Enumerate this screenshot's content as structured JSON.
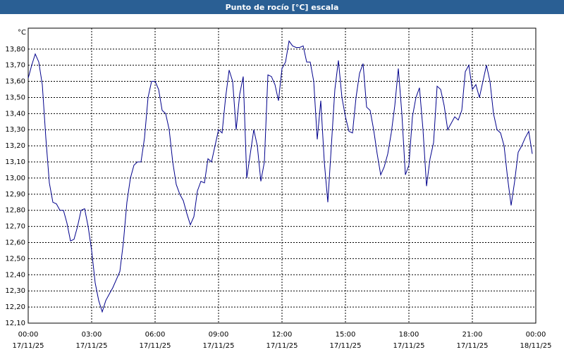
{
  "chart_data": {
    "type": "line",
    "title": "Punto de rocío [°C] escala",
    "unit": "°C",
    "x": [
      0,
      10,
      20,
      30,
      40,
      50,
      60,
      70,
      80,
      90,
      100,
      110,
      120,
      130,
      140,
      150,
      160,
      170,
      180,
      190,
      200,
      210,
      220,
      230,
      240,
      250,
      260,
      270,
      280,
      290,
      300,
      310,
      320,
      330,
      340,
      350,
      360,
      370,
      380,
      390,
      400,
      410,
      420,
      430,
      440,
      450,
      460,
      470,
      480,
      490,
      500,
      510,
      520,
      530,
      540,
      550,
      560,
      570,
      580,
      590,
      600,
      610,
      620,
      630,
      640,
      650,
      660,
      670,
      680,
      690,
      700,
      710,
      720,
      730,
      740,
      750,
      760,
      770,
      780,
      790,
      800,
      810,
      820,
      830,
      840,
      850,
      860,
      870,
      880,
      890,
      900,
      910,
      920,
      930,
      940,
      950,
      960,
      970,
      980,
      990,
      1000,
      1010,
      1020,
      1030,
      1040,
      1050,
      1060,
      1070,
      1080,
      1090,
      1100,
      1110,
      1120,
      1130,
      1140,
      1150,
      1160,
      1170,
      1180,
      1190,
      1200,
      1210,
      1220,
      1230,
      1240,
      1250,
      1260,
      1270,
      1280,
      1290,
      1300,
      1310,
      1320,
      1330,
      1340,
      1350,
      1360,
      1370,
      1380,
      1390,
      1400,
      1410,
      1420,
      1430
    ],
    "series": [
      {
        "color": "#00008b",
        "values": [
          13.62,
          13.7,
          13.77,
          13.72,
          13.58,
          13.25,
          12.97,
          12.85,
          12.84,
          12.8,
          12.8,
          12.72,
          12.61,
          12.62,
          12.7,
          12.8,
          12.81,
          12.7,
          12.55,
          12.35,
          12.24,
          12.17,
          12.24,
          12.28,
          12.32,
          12.37,
          12.42,
          12.6,
          12.85,
          13.0,
          13.08,
          13.1,
          13.1,
          13.25,
          13.5,
          13.6,
          13.6,
          13.55,
          13.42,
          13.4,
          13.3,
          13.1,
          12.96,
          12.9,
          12.86,
          12.78,
          12.71,
          12.76,
          12.92,
          12.98,
          12.97,
          13.12,
          13.1,
          13.2,
          13.3,
          13.28,
          13.5,
          13.67,
          13.6,
          13.3,
          13.52,
          13.63,
          13.0,
          13.15,
          13.3,
          13.2,
          12.98,
          13.1,
          13.64,
          13.63,
          13.58,
          13.48,
          13.68,
          13.72,
          13.85,
          13.82,
          13.81,
          13.81,
          13.82,
          13.72,
          13.72,
          13.6,
          13.24,
          13.48,
          13.1,
          12.85,
          13.2,
          13.55,
          13.73,
          13.5,
          13.38,
          13.29,
          13.28,
          13.5,
          13.65,
          13.71,
          13.44,
          13.42,
          13.3,
          13.15,
          13.02,
          13.07,
          13.15,
          13.28,
          13.45,
          13.68,
          13.4,
          13.02,
          13.08,
          13.38,
          13.5,
          13.56,
          13.3,
          12.95,
          13.12,
          13.22,
          13.57,
          13.55,
          13.45,
          13.3,
          13.34,
          13.38,
          13.36,
          13.42,
          13.66,
          13.7,
          13.55,
          13.58,
          13.5,
          13.6,
          13.7,
          13.6,
          13.4,
          13.3,
          13.28,
          13.2,
          13.0,
          12.83,
          12.98,
          13.16,
          13.2,
          13.25,
          13.29,
          13.15
        ]
      }
    ],
    "xlim": [
      0,
      1440
    ],
    "ylim": [
      12.1,
      13.93
    ],
    "xticks": [
      {
        "value": 0,
        "label": "00:00",
        "date": "17/11/25"
      },
      {
        "value": 180,
        "label": "03:00",
        "date": "17/11/25"
      },
      {
        "value": 360,
        "label": "06:00",
        "date": "17/11/25"
      },
      {
        "value": 540,
        "label": "09:00",
        "date": "17/11/25"
      },
      {
        "value": 720,
        "label": "12:00",
        "date": "17/11/25"
      },
      {
        "value": 900,
        "label": "15:00",
        "date": "17/11/25"
      },
      {
        "value": 1080,
        "label": "18:00",
        "date": "17/11/25"
      },
      {
        "value": 1260,
        "label": "21:00",
        "date": "17/11/25"
      },
      {
        "value": 1440,
        "label": "00:00",
        "date": "18/11/25"
      }
    ],
    "yticks": [
      {
        "value": 12.1,
        "label": "12,10"
      },
      {
        "value": 12.2,
        "label": "12,20"
      },
      {
        "value": 12.3,
        "label": "12,30"
      },
      {
        "value": 12.4,
        "label": "12,40"
      },
      {
        "value": 12.5,
        "label": "12,50"
      },
      {
        "value": 12.6,
        "label": "12,60"
      },
      {
        "value": 12.7,
        "label": "12,70"
      },
      {
        "value": 12.8,
        "label": "12,80"
      },
      {
        "value": 12.9,
        "label": "12,90"
      },
      {
        "value": 13.0,
        "label": "13,00"
      },
      {
        "value": 13.1,
        "label": "13,10"
      },
      {
        "value": 13.2,
        "label": "13,20"
      },
      {
        "value": 13.3,
        "label": "13,30"
      },
      {
        "value": 13.4,
        "label": "13,40"
      },
      {
        "value": 13.5,
        "label": "13,50"
      },
      {
        "value": 13.6,
        "label": "13,60"
      },
      {
        "value": 13.7,
        "label": "13,70"
      },
      {
        "value": 13.8,
        "label": "13,80"
      }
    ],
    "grid": true
  }
}
